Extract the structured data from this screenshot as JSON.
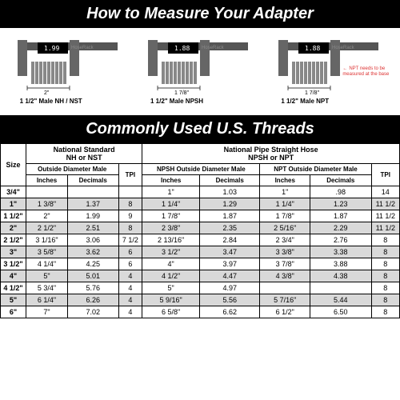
{
  "header1": "How to Measure Your Adapter",
  "header2": "Commonly Used U.S. Threads",
  "diagrams": [
    {
      "reading": "1.99",
      "brand": "HoseRack",
      "dim": "2\"",
      "label": "1 1/2\" Male NH / NST",
      "npt": false
    },
    {
      "reading": "1.88",
      "brand": "HoseRack",
      "dim": "1 7/8\"",
      "label": "1 1/2\" Male NPSH",
      "npt": false
    },
    {
      "reading": "1.88",
      "brand": "HoseRack",
      "dim": "1 7/8\"",
      "label": "1 1/2\" Male NPT",
      "npt": true
    }
  ],
  "npt_note": "NPT needs to be measured at the base",
  "table": {
    "group1": "National Standard\nNH or NST",
    "group2": "National Pipe Straight Hose\nNPSH or NPT",
    "sub1": "Outside Diameter Male",
    "sub2": "NPSH Outside Diameter Male",
    "sub3": "NPT Outside Diameter Male",
    "cols": {
      "size": "Size",
      "in": "Inches",
      "dec": "Decimals",
      "tpi": "TPI"
    },
    "rows": [
      {
        "size": "3/4\"",
        "a": "",
        "b": "",
        "c": "",
        "d": "1\"",
        "e": "1.03",
        "f": "1\"",
        "g": ".98",
        "h": "14"
      },
      {
        "size": "1\"",
        "a": "1 3/8\"",
        "b": "1.37",
        "c": "8",
        "d": "1 1/4\"",
        "e": "1.29",
        "f": "1 1/4\"",
        "g": "1.23",
        "h": "11 1/2"
      },
      {
        "size": "1 1/2\"",
        "a": "2\"",
        "b": "1.99",
        "c": "9",
        "d": "1 7/8\"",
        "e": "1.87",
        "f": "1 7/8\"",
        "g": "1.87",
        "h": "11 1/2"
      },
      {
        "size": "2\"",
        "a": "2 1/2\"",
        "b": "2.51",
        "c": "8",
        "d": "2 3/8\"",
        "e": "2.35",
        "f": "2 5/16\"",
        "g": "2.29",
        "h": "11 1/2"
      },
      {
        "size": "2 1/2\"",
        "a": "3 1/16\"",
        "b": "3.06",
        "c": "7 1/2",
        "d": "2 13/16\"",
        "e": "2.84",
        "f": "2 3/4\"",
        "g": "2.76",
        "h": "8"
      },
      {
        "size": "3\"",
        "a": "3 5/8\"",
        "b": "3.62",
        "c": "6",
        "d": "3 1/2\"",
        "e": "3.47",
        "f": "3 3/8\"",
        "g": "3.38",
        "h": "8"
      },
      {
        "size": "3 1/2\"",
        "a": "4 1/4\"",
        "b": "4.25",
        "c": "6",
        "d": "4\"",
        "e": "3.97",
        "f": "3 7/8\"",
        "g": "3.88",
        "h": "8"
      },
      {
        "size": "4\"",
        "a": "5\"",
        "b": "5.01",
        "c": "4",
        "d": "4 1/2\"",
        "e": "4.47",
        "f": "4 3/8\"",
        "g": "4.38",
        "h": "8"
      },
      {
        "size": "4 1/2\"",
        "a": "5 3/4\"",
        "b": "5.76",
        "c": "4",
        "d": "5\"",
        "e": "4.97",
        "f": "",
        "g": "",
        "h": "8"
      },
      {
        "size": "5\"",
        "a": "6 1/4\"",
        "b": "6.26",
        "c": "4",
        "d": "5 9/16\"",
        "e": "5.56",
        "f": "5 7/16\"",
        "g": "5.44",
        "h": "8"
      },
      {
        "size": "6\"",
        "a": "7\"",
        "b": "7.02",
        "c": "4",
        "d": "6 5/8\"",
        "e": "6.62",
        "f": "6 1/2\"",
        "g": "6.50",
        "h": "8"
      }
    ]
  }
}
